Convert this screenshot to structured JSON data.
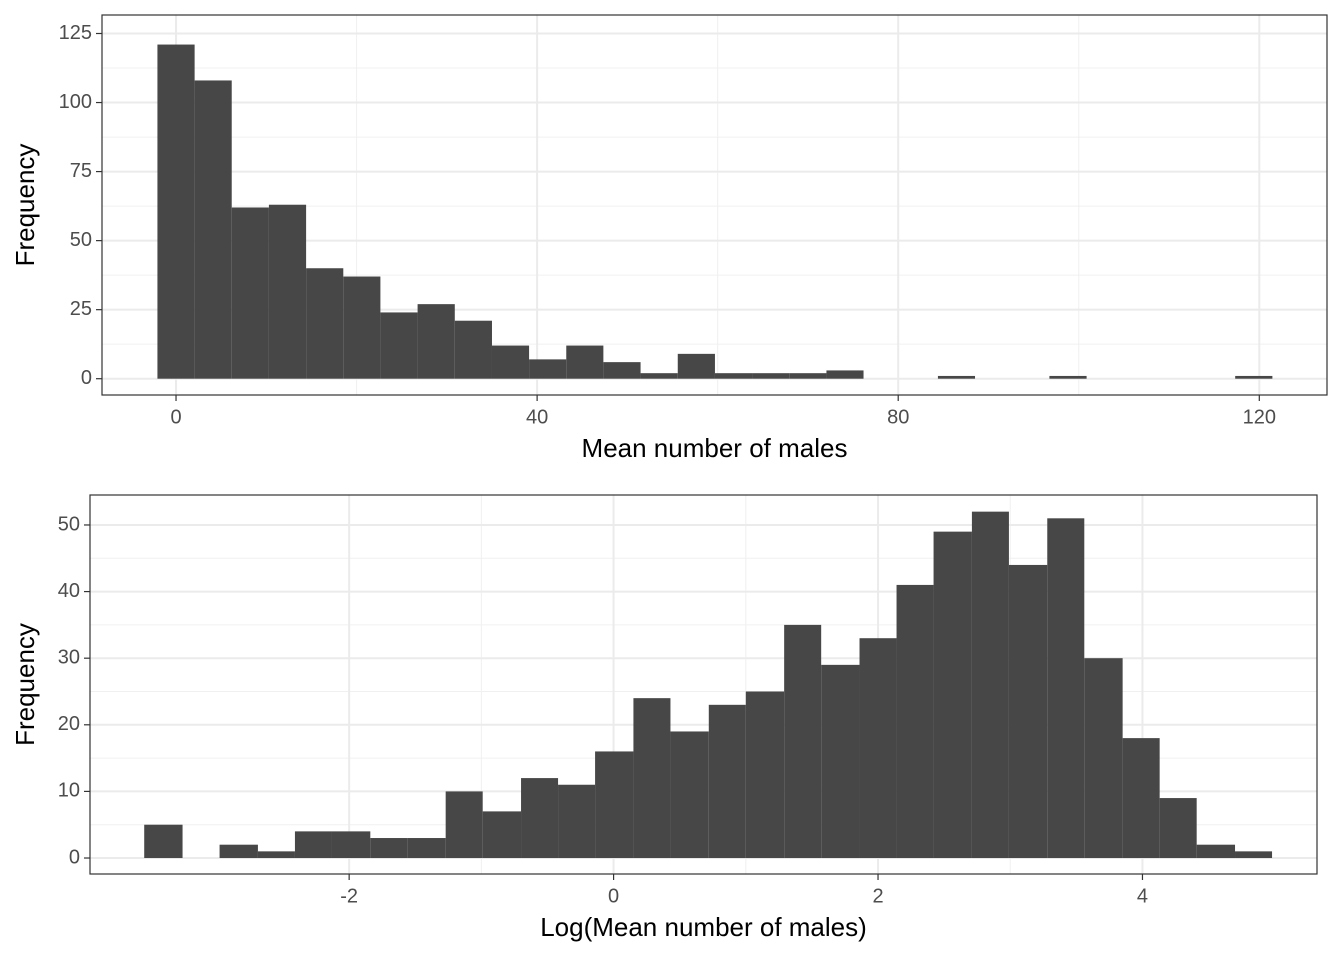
{
  "chart_data": [
    {
      "type": "histogram",
      "xlabel": "Mean number of males",
      "ylabel": "Frequency",
      "color": "#474747",
      "grid": true,
      "bins": [
        -2.06,
        2.06,
        6.17,
        10.29,
        14.41,
        18.53,
        22.64,
        26.76,
        30.88,
        35.0,
        39.11,
        43.23,
        47.34,
        51.46,
        55.58,
        59.7,
        63.81,
        67.93,
        72.05,
        76.16,
        80.28,
        84.4,
        88.51,
        92.63,
        96.75,
        100.87,
        104.98,
        109.1,
        113.22,
        117.33,
        121.45
      ],
      "values": [
        121,
        108,
        62,
        63,
        40,
        37,
        24,
        27,
        21,
        12,
        7,
        12,
        6,
        2,
        9,
        2,
        2,
        2,
        3,
        0,
        0,
        1,
        0,
        0,
        1,
        0,
        0,
        0,
        0,
        1
      ],
      "xlim": [
        -8.2,
        127.5
      ],
      "xticks": [
        0,
        40,
        80,
        120
      ],
      "ylim": [
        -5.9,
        131.7
      ],
      "yticks": [
        0,
        25,
        50,
        75,
        100,
        125
      ]
    },
    {
      "type": "histogram",
      "xlabel": "Log(Mean number of males)",
      "ylabel": "Frequency",
      "color": "#474747",
      "grid": true,
      "bins": [
        -3.55,
        -3.26,
        -2.98,
        -2.69,
        -2.41,
        -2.13,
        -1.84,
        -1.56,
        -1.27,
        -0.99,
        -0.7,
        -0.42,
        -0.14,
        0.15,
        0.43,
        0.72,
        1.0,
        1.29,
        1.57,
        1.86,
        2.14,
        2.42,
        2.71,
        2.99,
        3.28,
        3.56,
        3.85,
        4.13,
        4.41,
        4.7,
        4.98
      ],
      "values": [
        5,
        0,
        2,
        1,
        4,
        4,
        3,
        3,
        10,
        7,
        12,
        11,
        16,
        24,
        19,
        23,
        25,
        35,
        29,
        33,
        41,
        49,
        52,
        44,
        51,
        30,
        18,
        9,
        2,
        1
      ],
      "xlim": [
        -3.96,
        5.32
      ],
      "xticks": [
        -2,
        0,
        2,
        4
      ],
      "ylim": [
        -2.4,
        54.5
      ],
      "yticks": [
        0,
        10,
        20,
        30,
        40,
        50
      ]
    }
  ]
}
